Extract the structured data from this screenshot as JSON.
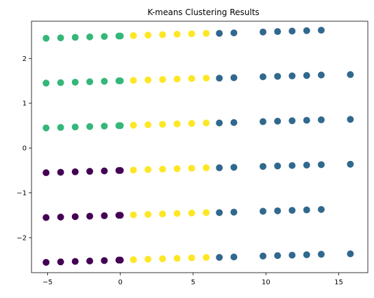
{
  "chart_data": {
    "type": "scatter",
    "title": "K-means Clustering Results",
    "xlabel": "",
    "ylabel": "",
    "xlim": [
      -6.1,
      17.0
    ],
    "ylim": [
      -2.78,
      2.83
    ],
    "xticks": [
      -5,
      0,
      5,
      10,
      15
    ],
    "yticks": [
      -2,
      -1,
      0,
      1,
      2
    ],
    "xtick_labels": [
      "−5",
      "0",
      "5",
      "10",
      "15"
    ],
    "ytick_labels": [
      "−2",
      "−1",
      "0",
      "1",
      "2"
    ],
    "grid": false,
    "legend": false,
    "colors": {
      "cluster_0": "#440154",
      "cluster_1": "#31688e",
      "cluster_2": "#35b779",
      "cluster_3": "#fde725"
    },
    "points": [
      {
        "x": -5.1,
        "y": 2.45,
        "cluster": 2
      },
      {
        "x": -4.1,
        "y": 2.46,
        "cluster": 2
      },
      {
        "x": -3.1,
        "y": 2.47,
        "cluster": 2
      },
      {
        "x": -2.1,
        "y": 2.48,
        "cluster": 2
      },
      {
        "x": -1.1,
        "y": 2.49,
        "cluster": 2
      },
      {
        "x": -0.1,
        "y": 2.5,
        "cluster": 2
      },
      {
        "x": 0.0,
        "y": 2.5,
        "cluster": 2
      },
      {
        "x": 0.9,
        "y": 2.51,
        "cluster": 3
      },
      {
        "x": 1.9,
        "y": 2.52,
        "cluster": 3
      },
      {
        "x": 2.9,
        "y": 2.53,
        "cluster": 3
      },
      {
        "x": 3.9,
        "y": 2.54,
        "cluster": 3
      },
      {
        "x": 4.9,
        "y": 2.55,
        "cluster": 3
      },
      {
        "x": 5.9,
        "y": 2.56,
        "cluster": 3
      },
      {
        "x": 6.8,
        "y": 2.56,
        "cluster": 1
      },
      {
        "x": 7.8,
        "y": 2.57,
        "cluster": 1
      },
      {
        "x": 9.8,
        "y": 2.59,
        "cluster": 1
      },
      {
        "x": 10.8,
        "y": 2.6,
        "cluster": 1
      },
      {
        "x": 11.8,
        "y": 2.61,
        "cluster": 1
      },
      {
        "x": 12.8,
        "y": 2.62,
        "cluster": 1
      },
      {
        "x": 13.8,
        "y": 2.63,
        "cluster": 1
      },
      {
        "x": -5.1,
        "y": 1.45,
        "cluster": 2
      },
      {
        "x": -4.1,
        "y": 1.46,
        "cluster": 2
      },
      {
        "x": -3.1,
        "y": 1.47,
        "cluster": 2
      },
      {
        "x": -2.1,
        "y": 1.48,
        "cluster": 2
      },
      {
        "x": -1.1,
        "y": 1.49,
        "cluster": 2
      },
      {
        "x": -0.1,
        "y": 1.5,
        "cluster": 2
      },
      {
        "x": 0.0,
        "y": 1.5,
        "cluster": 2
      },
      {
        "x": 0.9,
        "y": 1.51,
        "cluster": 3
      },
      {
        "x": 1.9,
        "y": 1.52,
        "cluster": 3
      },
      {
        "x": 2.9,
        "y": 1.53,
        "cluster": 3
      },
      {
        "x": 3.9,
        "y": 1.54,
        "cluster": 3
      },
      {
        "x": 4.9,
        "y": 1.55,
        "cluster": 3
      },
      {
        "x": 5.9,
        "y": 1.56,
        "cluster": 3
      },
      {
        "x": 6.8,
        "y": 1.56,
        "cluster": 1
      },
      {
        "x": 7.8,
        "y": 1.57,
        "cluster": 1
      },
      {
        "x": 9.8,
        "y": 1.59,
        "cluster": 1
      },
      {
        "x": 10.8,
        "y": 1.6,
        "cluster": 1
      },
      {
        "x": 11.8,
        "y": 1.61,
        "cluster": 1
      },
      {
        "x": 12.8,
        "y": 1.62,
        "cluster": 1
      },
      {
        "x": 13.8,
        "y": 1.63,
        "cluster": 1
      },
      {
        "x": 15.8,
        "y": 1.64,
        "cluster": 1
      },
      {
        "x": -5.1,
        "y": 0.45,
        "cluster": 2
      },
      {
        "x": -4.1,
        "y": 0.46,
        "cluster": 2
      },
      {
        "x": -3.1,
        "y": 0.47,
        "cluster": 2
      },
      {
        "x": -2.1,
        "y": 0.48,
        "cluster": 2
      },
      {
        "x": -1.1,
        "y": 0.49,
        "cluster": 2
      },
      {
        "x": -0.1,
        "y": 0.5,
        "cluster": 2
      },
      {
        "x": 0.0,
        "y": 0.5,
        "cluster": 2
      },
      {
        "x": 0.9,
        "y": 0.51,
        "cluster": 3
      },
      {
        "x": 1.9,
        "y": 0.52,
        "cluster": 3
      },
      {
        "x": 2.9,
        "y": 0.53,
        "cluster": 3
      },
      {
        "x": 3.9,
        "y": 0.54,
        "cluster": 3
      },
      {
        "x": 4.9,
        "y": 0.55,
        "cluster": 3
      },
      {
        "x": 5.9,
        "y": 0.56,
        "cluster": 3
      },
      {
        "x": 6.8,
        "y": 0.56,
        "cluster": 1
      },
      {
        "x": 7.8,
        "y": 0.57,
        "cluster": 1
      },
      {
        "x": 9.8,
        "y": 0.59,
        "cluster": 1
      },
      {
        "x": 10.8,
        "y": 0.6,
        "cluster": 1
      },
      {
        "x": 11.8,
        "y": 0.61,
        "cluster": 1
      },
      {
        "x": 12.8,
        "y": 0.62,
        "cluster": 1
      },
      {
        "x": 13.8,
        "y": 0.63,
        "cluster": 1
      },
      {
        "x": 15.8,
        "y": 0.64,
        "cluster": 1
      },
      {
        "x": -5.1,
        "y": -0.55,
        "cluster": 0
      },
      {
        "x": -4.1,
        "y": -0.54,
        "cluster": 0
      },
      {
        "x": -3.1,
        "y": -0.53,
        "cluster": 0
      },
      {
        "x": -2.1,
        "y": -0.52,
        "cluster": 0
      },
      {
        "x": -1.1,
        "y": -0.51,
        "cluster": 0
      },
      {
        "x": -0.1,
        "y": -0.5,
        "cluster": 0
      },
      {
        "x": 0.0,
        "y": -0.5,
        "cluster": 0
      },
      {
        "x": 0.9,
        "y": -0.49,
        "cluster": 3
      },
      {
        "x": 1.9,
        "y": -0.48,
        "cluster": 3
      },
      {
        "x": 2.9,
        "y": -0.47,
        "cluster": 3
      },
      {
        "x": 3.9,
        "y": -0.46,
        "cluster": 3
      },
      {
        "x": 4.9,
        "y": -0.45,
        "cluster": 3
      },
      {
        "x": 5.9,
        "y": -0.44,
        "cluster": 3
      },
      {
        "x": 6.8,
        "y": -0.44,
        "cluster": 1
      },
      {
        "x": 7.8,
        "y": -0.43,
        "cluster": 1
      },
      {
        "x": 9.8,
        "y": -0.41,
        "cluster": 1
      },
      {
        "x": 10.8,
        "y": -0.4,
        "cluster": 1
      },
      {
        "x": 11.8,
        "y": -0.39,
        "cluster": 1
      },
      {
        "x": 12.8,
        "y": -0.38,
        "cluster": 1
      },
      {
        "x": 13.8,
        "y": -0.37,
        "cluster": 1
      },
      {
        "x": 15.8,
        "y": -0.36,
        "cluster": 1
      },
      {
        "x": -5.1,
        "y": -1.55,
        "cluster": 0
      },
      {
        "x": -4.1,
        "y": -1.54,
        "cluster": 0
      },
      {
        "x": -3.1,
        "y": -1.53,
        "cluster": 0
      },
      {
        "x": -2.1,
        "y": -1.52,
        "cluster": 0
      },
      {
        "x": -1.1,
        "y": -1.51,
        "cluster": 0
      },
      {
        "x": -0.1,
        "y": -1.5,
        "cluster": 0
      },
      {
        "x": 0.0,
        "y": -1.5,
        "cluster": 0
      },
      {
        "x": 0.9,
        "y": -1.49,
        "cluster": 3
      },
      {
        "x": 1.9,
        "y": -1.48,
        "cluster": 3
      },
      {
        "x": 2.9,
        "y": -1.47,
        "cluster": 3
      },
      {
        "x": 3.9,
        "y": -1.46,
        "cluster": 3
      },
      {
        "x": 4.9,
        "y": -1.45,
        "cluster": 3
      },
      {
        "x": 5.9,
        "y": -1.44,
        "cluster": 3
      },
      {
        "x": 6.8,
        "y": -1.44,
        "cluster": 1
      },
      {
        "x": 7.8,
        "y": -1.43,
        "cluster": 1
      },
      {
        "x": 9.8,
        "y": -1.41,
        "cluster": 1
      },
      {
        "x": 10.8,
        "y": -1.4,
        "cluster": 1
      },
      {
        "x": 11.8,
        "y": -1.39,
        "cluster": 1
      },
      {
        "x": 12.8,
        "y": -1.38,
        "cluster": 1
      },
      {
        "x": 13.8,
        "y": -1.37,
        "cluster": 1
      },
      {
        "x": -5.1,
        "y": -2.55,
        "cluster": 0
      },
      {
        "x": -4.1,
        "y": -2.54,
        "cluster": 0
      },
      {
        "x": -3.1,
        "y": -2.53,
        "cluster": 0
      },
      {
        "x": -2.1,
        "y": -2.52,
        "cluster": 0
      },
      {
        "x": -1.1,
        "y": -2.51,
        "cluster": 0
      },
      {
        "x": -0.1,
        "y": -2.5,
        "cluster": 0
      },
      {
        "x": 0.0,
        "y": -2.5,
        "cluster": 0
      },
      {
        "x": 0.9,
        "y": -2.49,
        "cluster": 3
      },
      {
        "x": 1.9,
        "y": -2.48,
        "cluster": 3
      },
      {
        "x": 2.9,
        "y": -2.47,
        "cluster": 3
      },
      {
        "x": 3.9,
        "y": -2.46,
        "cluster": 3
      },
      {
        "x": 4.9,
        "y": -2.45,
        "cluster": 3
      },
      {
        "x": 5.9,
        "y": -2.44,
        "cluster": 3
      },
      {
        "x": 6.8,
        "y": -2.44,
        "cluster": 1
      },
      {
        "x": 7.8,
        "y": -2.43,
        "cluster": 1
      },
      {
        "x": 9.8,
        "y": -2.41,
        "cluster": 1
      },
      {
        "x": 10.8,
        "y": -2.4,
        "cluster": 1
      },
      {
        "x": 11.8,
        "y": -2.39,
        "cluster": 1
      },
      {
        "x": 12.8,
        "y": -2.38,
        "cluster": 1
      },
      {
        "x": 13.8,
        "y": -2.37,
        "cluster": 1
      },
      {
        "x": 15.8,
        "y": -2.36,
        "cluster": 1
      }
    ]
  }
}
